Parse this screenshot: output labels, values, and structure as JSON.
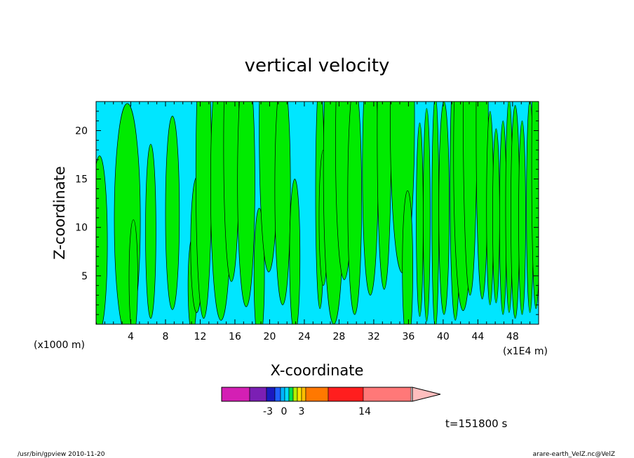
{
  "chart_data": {
    "type": "heatmap",
    "title": "vertical velocity",
    "xlabel": "X-coordinate",
    "ylabel": "Z-coordinate",
    "x_unit_left": "(x1000 m)",
    "x_unit_right": "(x1E4 m)",
    "x_ticks": [
      "4",
      "8",
      "12",
      "16",
      "20",
      "24",
      "28",
      "32",
      "36",
      "40",
      "44",
      "48"
    ],
    "y_ticks": [
      "5",
      "10",
      "15",
      "20"
    ],
    "xlim": [
      0,
      51
    ],
    "ylim": [
      0,
      23
    ],
    "colorbar": {
      "labels": [
        {
          "text": "-3",
          "value": -3
        },
        {
          "text": "0",
          "value": 0
        },
        {
          "text": "3",
          "value": 3
        },
        {
          "text": "14",
          "value": 14
        }
      ],
      "colors": [
        "#d41fb4",
        "#7b1fb4",
        "#1a1ac0",
        "#2060ff",
        "#00b4ff",
        "#00dcff",
        "#00e050",
        "#b4f000",
        "#ffe600",
        "#ffbe00",
        "#ff7800",
        "#ff1e1e",
        "#ff7878",
        "#ffbebe"
      ]
    },
    "field_colors": {
      "negative": "#00e6ff",
      "positive": "#00eb00"
    },
    "timestamp": "t=151800 s"
  },
  "footer": {
    "left": "/usr/bin/gpview   2010-11-20",
    "right": "arare-earth_VelZ.nc@VelZ"
  }
}
